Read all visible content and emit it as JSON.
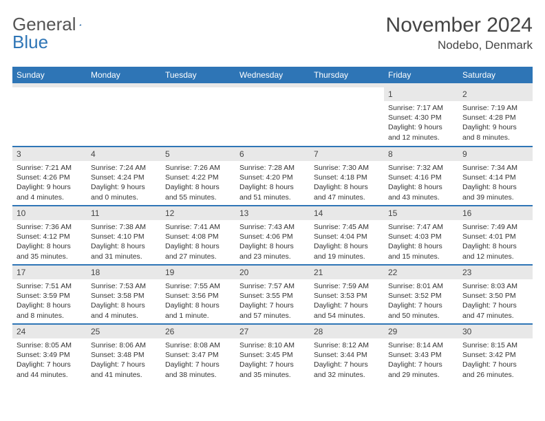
{
  "brand": {
    "part1": "General",
    "part2": "Blue"
  },
  "title": "November 2024",
  "location": "Nodebo, Denmark",
  "colors": {
    "header_bg": "#2e75b6",
    "header_text": "#ffffff",
    "daynum_bg": "#e8e8e8",
    "border": "#2e75b6",
    "text": "#333333"
  },
  "weekdays": [
    "Sunday",
    "Monday",
    "Tuesday",
    "Wednesday",
    "Thursday",
    "Friday",
    "Saturday"
  ],
  "weeks": [
    [
      null,
      null,
      null,
      null,
      null,
      {
        "n": "1",
        "sunrise": "Sunrise: 7:17 AM",
        "sunset": "Sunset: 4:30 PM",
        "daylight": "Daylight: 9 hours and 12 minutes."
      },
      {
        "n": "2",
        "sunrise": "Sunrise: 7:19 AM",
        "sunset": "Sunset: 4:28 PM",
        "daylight": "Daylight: 9 hours and 8 minutes."
      }
    ],
    [
      {
        "n": "3",
        "sunrise": "Sunrise: 7:21 AM",
        "sunset": "Sunset: 4:26 PM",
        "daylight": "Daylight: 9 hours and 4 minutes."
      },
      {
        "n": "4",
        "sunrise": "Sunrise: 7:24 AM",
        "sunset": "Sunset: 4:24 PM",
        "daylight": "Daylight: 9 hours and 0 minutes."
      },
      {
        "n": "5",
        "sunrise": "Sunrise: 7:26 AM",
        "sunset": "Sunset: 4:22 PM",
        "daylight": "Daylight: 8 hours and 55 minutes."
      },
      {
        "n": "6",
        "sunrise": "Sunrise: 7:28 AM",
        "sunset": "Sunset: 4:20 PM",
        "daylight": "Daylight: 8 hours and 51 minutes."
      },
      {
        "n": "7",
        "sunrise": "Sunrise: 7:30 AM",
        "sunset": "Sunset: 4:18 PM",
        "daylight": "Daylight: 8 hours and 47 minutes."
      },
      {
        "n": "8",
        "sunrise": "Sunrise: 7:32 AM",
        "sunset": "Sunset: 4:16 PM",
        "daylight": "Daylight: 8 hours and 43 minutes."
      },
      {
        "n": "9",
        "sunrise": "Sunrise: 7:34 AM",
        "sunset": "Sunset: 4:14 PM",
        "daylight": "Daylight: 8 hours and 39 minutes."
      }
    ],
    [
      {
        "n": "10",
        "sunrise": "Sunrise: 7:36 AM",
        "sunset": "Sunset: 4:12 PM",
        "daylight": "Daylight: 8 hours and 35 minutes."
      },
      {
        "n": "11",
        "sunrise": "Sunrise: 7:38 AM",
        "sunset": "Sunset: 4:10 PM",
        "daylight": "Daylight: 8 hours and 31 minutes."
      },
      {
        "n": "12",
        "sunrise": "Sunrise: 7:41 AM",
        "sunset": "Sunset: 4:08 PM",
        "daylight": "Daylight: 8 hours and 27 minutes."
      },
      {
        "n": "13",
        "sunrise": "Sunrise: 7:43 AM",
        "sunset": "Sunset: 4:06 PM",
        "daylight": "Daylight: 8 hours and 23 minutes."
      },
      {
        "n": "14",
        "sunrise": "Sunrise: 7:45 AM",
        "sunset": "Sunset: 4:04 PM",
        "daylight": "Daylight: 8 hours and 19 minutes."
      },
      {
        "n": "15",
        "sunrise": "Sunrise: 7:47 AM",
        "sunset": "Sunset: 4:03 PM",
        "daylight": "Daylight: 8 hours and 15 minutes."
      },
      {
        "n": "16",
        "sunrise": "Sunrise: 7:49 AM",
        "sunset": "Sunset: 4:01 PM",
        "daylight": "Daylight: 8 hours and 12 minutes."
      }
    ],
    [
      {
        "n": "17",
        "sunrise": "Sunrise: 7:51 AM",
        "sunset": "Sunset: 3:59 PM",
        "daylight": "Daylight: 8 hours and 8 minutes."
      },
      {
        "n": "18",
        "sunrise": "Sunrise: 7:53 AM",
        "sunset": "Sunset: 3:58 PM",
        "daylight": "Daylight: 8 hours and 4 minutes."
      },
      {
        "n": "19",
        "sunrise": "Sunrise: 7:55 AM",
        "sunset": "Sunset: 3:56 PM",
        "daylight": "Daylight: 8 hours and 1 minute."
      },
      {
        "n": "20",
        "sunrise": "Sunrise: 7:57 AM",
        "sunset": "Sunset: 3:55 PM",
        "daylight": "Daylight: 7 hours and 57 minutes."
      },
      {
        "n": "21",
        "sunrise": "Sunrise: 7:59 AM",
        "sunset": "Sunset: 3:53 PM",
        "daylight": "Daylight: 7 hours and 54 minutes."
      },
      {
        "n": "22",
        "sunrise": "Sunrise: 8:01 AM",
        "sunset": "Sunset: 3:52 PM",
        "daylight": "Daylight: 7 hours and 50 minutes."
      },
      {
        "n": "23",
        "sunrise": "Sunrise: 8:03 AM",
        "sunset": "Sunset: 3:50 PM",
        "daylight": "Daylight: 7 hours and 47 minutes."
      }
    ],
    [
      {
        "n": "24",
        "sunrise": "Sunrise: 8:05 AM",
        "sunset": "Sunset: 3:49 PM",
        "daylight": "Daylight: 7 hours and 44 minutes."
      },
      {
        "n": "25",
        "sunrise": "Sunrise: 8:06 AM",
        "sunset": "Sunset: 3:48 PM",
        "daylight": "Daylight: 7 hours and 41 minutes."
      },
      {
        "n": "26",
        "sunrise": "Sunrise: 8:08 AM",
        "sunset": "Sunset: 3:47 PM",
        "daylight": "Daylight: 7 hours and 38 minutes."
      },
      {
        "n": "27",
        "sunrise": "Sunrise: 8:10 AM",
        "sunset": "Sunset: 3:45 PM",
        "daylight": "Daylight: 7 hours and 35 minutes."
      },
      {
        "n": "28",
        "sunrise": "Sunrise: 8:12 AM",
        "sunset": "Sunset: 3:44 PM",
        "daylight": "Daylight: 7 hours and 32 minutes."
      },
      {
        "n": "29",
        "sunrise": "Sunrise: 8:14 AM",
        "sunset": "Sunset: 3:43 PM",
        "daylight": "Daylight: 7 hours and 29 minutes."
      },
      {
        "n": "30",
        "sunrise": "Sunrise: 8:15 AM",
        "sunset": "Sunset: 3:42 PM",
        "daylight": "Daylight: 7 hours and 26 minutes."
      }
    ]
  ]
}
